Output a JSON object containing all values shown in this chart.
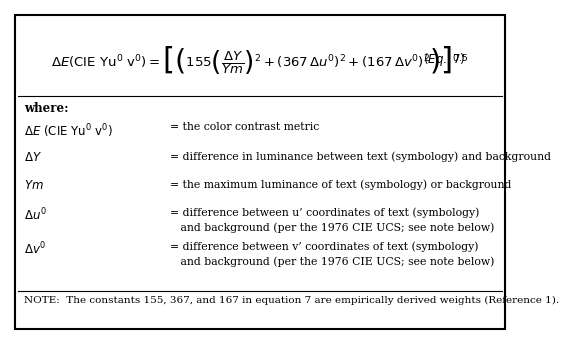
{
  "bg_color": "#ffffff",
  "border_color": "#000000",
  "eq_str": "$\\Delta E(\\mathrm{CIE\\ Yu^{\\prime}\\ v^{\\prime}}) = \\left[\\left(155\\left(\\dfrac{\\Delta Y}{Ym}\\right)^{\\!2}+(367\\,\\Delta u^{\\prime})^2+(167\\,\\Delta v^{\\prime})^2\\right)\\right]^{0.5}$",
  "eq_label": "$(Eq.\\ 7)$",
  "where_text": "where:",
  "rows": [
    {
      "symbol": "$\\Delta E\\ (\\mathrm{CIE\\ Yu^{\\prime}\\ v^{\\prime}})$",
      "definition": "= the color contrast metric"
    },
    {
      "symbol": "$\\Delta Y$",
      "definition": "= difference in luminance between text (symbology) and background"
    },
    {
      "symbol": "$Ym$",
      "definition": "= the maximum luminance of text (symbology) or background"
    },
    {
      "symbol": "$\\Delta u^{\\prime}$",
      "definition": "= difference between u’ coordinates of text (symbology)\n   and background (per the 1976 CIE UCS; see note below)"
    },
    {
      "symbol": "$\\Delta v^{\\prime}$",
      "definition": "= difference between v’ coordinates of text (symbology)\n   and background (per the 1976 CIE UCS; see note below)"
    }
  ],
  "note": "NOTE:  The constants 155, 367, and 167 in equation 7 are empirically derived weights (Reference 1).",
  "font_size_eq": 9.5,
  "font_size_text": 7.8,
  "font_size_note": 7.5,
  "font_size_symbol": 8.5,
  "font_size_where": 8.5
}
